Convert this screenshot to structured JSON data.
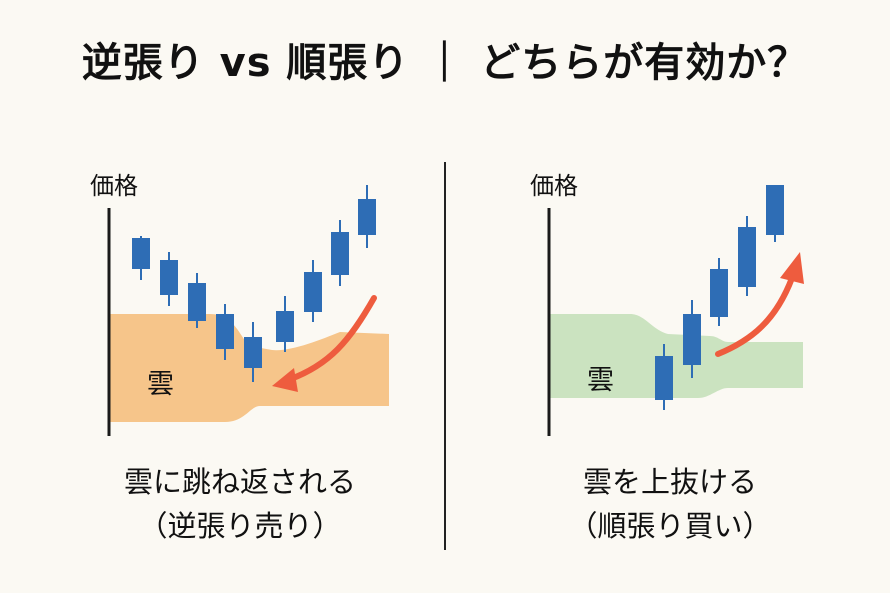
{
  "title": "逆張り vs 順張り ｜ どちらが有効か？",
  "colors": {
    "candle": "#2e6db5",
    "cloud_orange": "#f6c58a",
    "cloud_green": "#cbe3c0",
    "arrow": "#ee5c3e",
    "axis": "#1a1a1a"
  },
  "left_panel": {
    "axis_label": "価格",
    "cloud_label": "雲",
    "caption_line1": "雲に跳ね返される",
    "caption_line2": "（逆張り売り）",
    "arrow_direction": "down-left"
  },
  "right_panel": {
    "axis_label": "価格",
    "cloud_label": "雲",
    "caption_line1": "雲を上抜ける",
    "caption_line2": "（順張り買い）",
    "arrow_direction": "up-right"
  }
}
